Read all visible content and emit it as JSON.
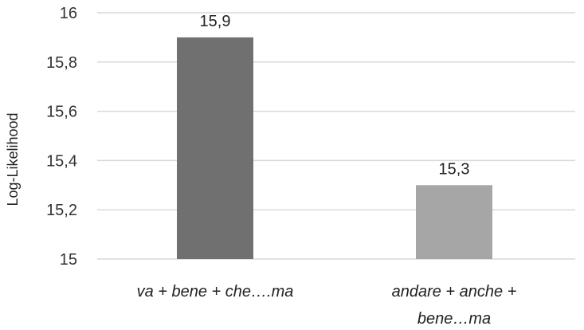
{
  "chart_data": {
    "type": "bar",
    "ylabel": "Log-Likelihood",
    "xlabel": "",
    "categories": [
      [
        "va + bene + che….ma"
      ],
      [
        "andare + anche +",
        "bene…ma"
      ]
    ],
    "values": [
      15.9,
      15.3
    ],
    "value_labels": [
      "15,9",
      "15,3"
    ],
    "ylim": [
      15,
      16
    ],
    "yticks": [
      15,
      15.2,
      15.4,
      15.6,
      15.8,
      16
    ],
    "ytick_labels": [
      "15",
      "15,2",
      "15,4",
      "15,6",
      "15,8",
      "16"
    ],
    "grid": true,
    "legend": "none",
    "colors": [
      "#707070",
      "#a6a6a6"
    ],
    "grid_color": "#d9d9d9"
  }
}
